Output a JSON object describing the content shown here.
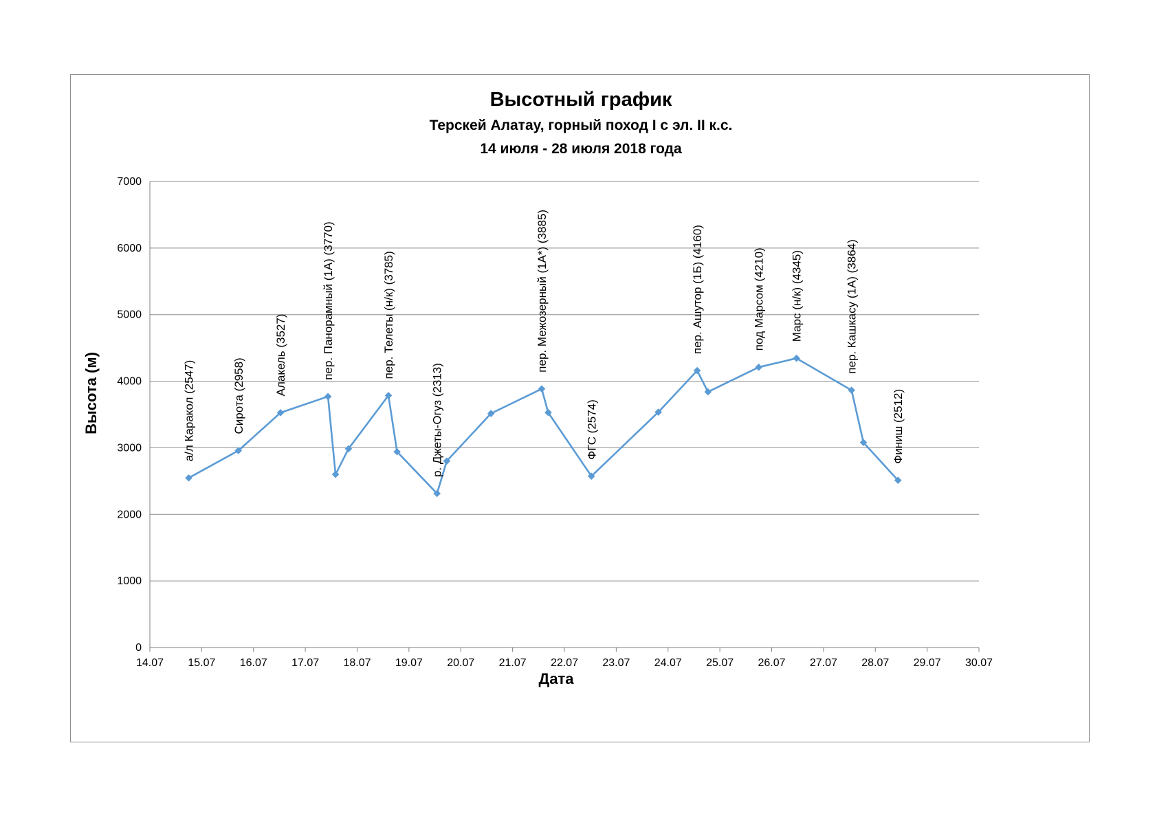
{
  "chart_data": {
    "type": "line",
    "title": "Высотный график",
    "subtitle_lines": [
      "Терскей Алатау, горный поход I с эл. II к.с.",
      "14 июля - 28 июля 2018 года"
    ],
    "xlabel": "Дата",
    "ylabel": "Высота (м)",
    "ylim": [
      0,
      7000
    ],
    "yticks": [
      "0",
      "1000",
      "2000",
      "3000",
      "4000",
      "5000",
      "6000",
      "7000"
    ],
    "xlim": [
      "14.07",
      "30.07"
    ],
    "xticks": [
      "14.07",
      "15.07",
      "16.07",
      "17.07",
      "18.07",
      "19.07",
      "20.07",
      "21.07",
      "22.07",
      "23.07",
      "24.07",
      "25.07",
      "26.07",
      "27.07",
      "28.07",
      "29.07",
      "30.07"
    ],
    "grid": "horizontal",
    "legend": "none",
    "series_color": "#5b9bd5",
    "points": [
      {
        "x": "14.07 18:00",
        "y": 2547,
        "label": "а/л Каракол (2547)"
      },
      {
        "x": "15.07 17:00",
        "y": 2958,
        "label": "Сирота (2958)"
      },
      {
        "x": "16.07 12:30",
        "y": 3527,
        "label": "Алакель (3527)"
      },
      {
        "x": "17.07 10:30",
        "y": 3770,
        "label": "пер. Панорамный (1А) (3770)"
      },
      {
        "x": "17.07 14:00",
        "y": 2600,
        "label": ""
      },
      {
        "x": "17.07 20:00",
        "y": 2985,
        "label": ""
      },
      {
        "x": "18.07 14:30",
        "y": 3785,
        "label": "пер. Телеты (н/к) (3785)"
      },
      {
        "x": "18.07 18:30",
        "y": 2940,
        "label": ""
      },
      {
        "x": "19.07 13:00",
        "y": 2313,
        "label": "р. Джеты-Огуз (2313)"
      },
      {
        "x": "19.07 17:30",
        "y": 2800,
        "label": ""
      },
      {
        "x": "20.07 14:00",
        "y": 3515,
        "label": ""
      },
      {
        "x": "21.07 13:30",
        "y": 3885,
        "label": "пер. Межозерный (1А*) (3885)"
      },
      {
        "x": "21.07 16:30",
        "y": 3530,
        "label": ""
      },
      {
        "x": "22.07 12:30",
        "y": 2574,
        "label": "ФГС (2574)"
      },
      {
        "x": "23.07 19:30",
        "y": 3535,
        "label": ""
      },
      {
        "x": "24.07 13:30",
        "y": 4160,
        "label": "пер. Ашутор (1Б) (4160)"
      },
      {
        "x": "24.07 18:30",
        "y": 3840,
        "label": ""
      },
      {
        "x": "25.07 18:00",
        "y": 4210,
        "label": "под Марсом (4210)"
      },
      {
        "x": "26.07 11:30",
        "y": 4345,
        "label": "Марс (н/к) (4345)"
      },
      {
        "x": "27.07 13:00",
        "y": 3864,
        "label": "пер. Кашкасу (1А) (3864)"
      },
      {
        "x": "27.07 18:30",
        "y": 3080,
        "label": ""
      },
      {
        "x": "28.07 10:30",
        "y": 2512,
        "label": "Финиш (2512)"
      }
    ]
  }
}
